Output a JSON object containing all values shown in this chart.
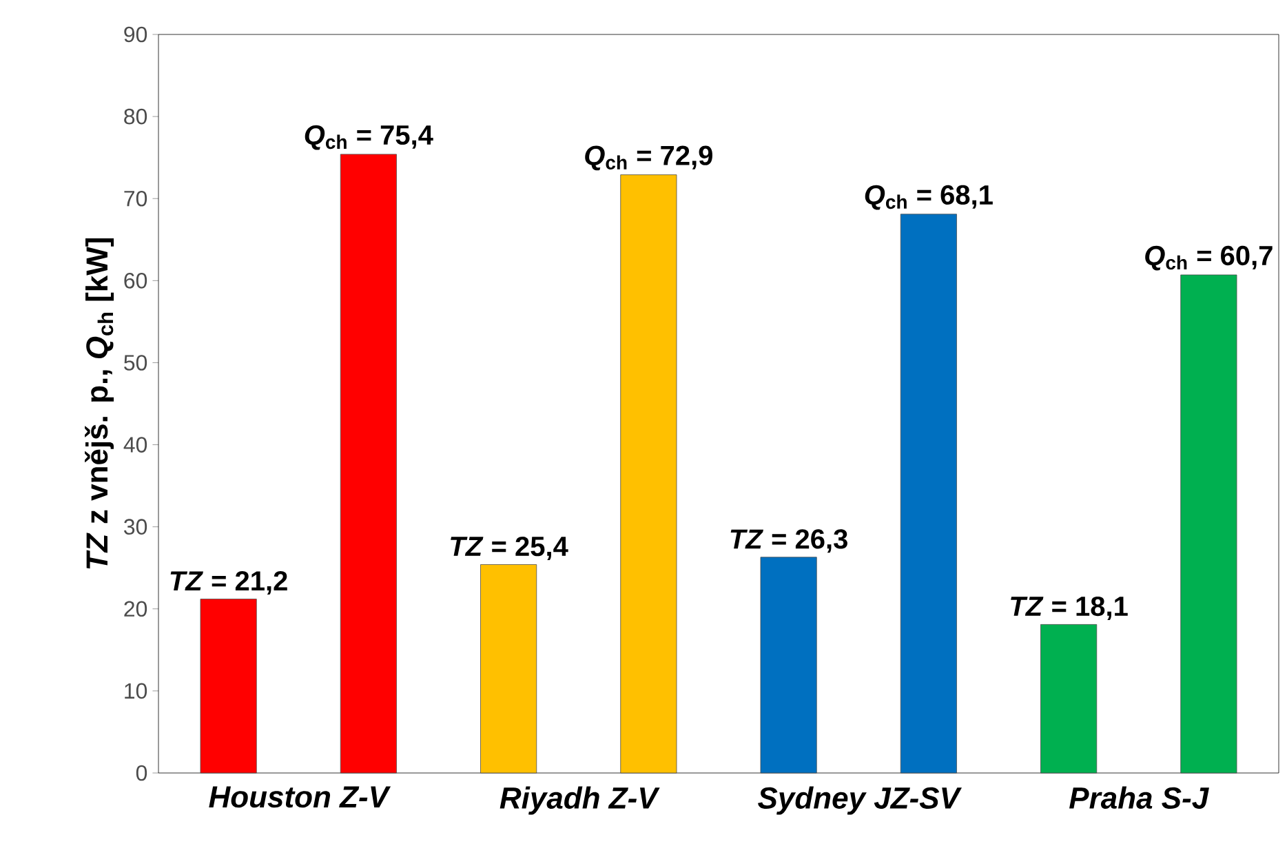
{
  "chart_data": {
    "type": "bar",
    "ylabel": "*TZ* z vnějš. p., *Q*$_{ch}$ [kW]",
    "categories": [
      "Houston Z-V",
      "Riyadh Z-V",
      "Sydney JZ-SV",
      "Praha S-J"
    ],
    "series": [
      {
        "colors": [
          "#ff0000",
          "#ffc000",
          "#0070c0",
          "#00b050"
        ],
        "values": [
          21.2,
          25.4,
          26.3,
          18.1
        ],
        "value_labels": [
          "*TZ* = 21,2",
          "*TZ* = 25,4",
          "*TZ* = 26,3",
          "*TZ* = 18,1"
        ]
      },
      {
        "colors": [
          "#ff0000",
          "#ffc000",
          "#0070c0",
          "#00b050"
        ],
        "values": [
          75.4,
          72.9,
          68.1,
          60.7
        ],
        "value_labels": [
          "*Q*$_{ch}$ = 75,4",
          "*Q*$_{ch}$ = 72,9",
          "*Q*$_{ch}$ = 68,1",
          "*Q*$_{ch}$ = 60,7"
        ]
      }
    ],
    "ylim": [
      0,
      90
    ],
    "yticks": [
      0,
      10,
      20,
      30,
      40,
      50,
      60,
      70,
      80,
      90
    ]
  }
}
